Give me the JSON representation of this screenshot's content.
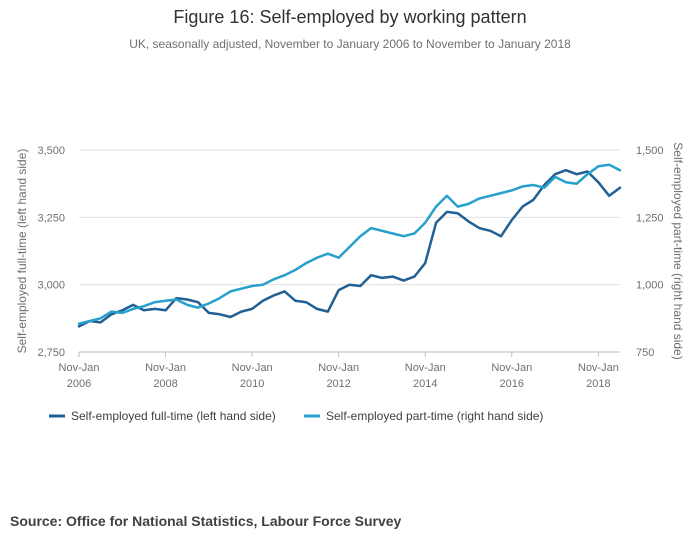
{
  "title": "Figure 16: Self-employed by working pattern",
  "subtitle": "UK, seasonally adjusted, November to January 2006 to November to January 2018",
  "source": "Source: Office for National Statistics, Labour Force Survey",
  "colors": {
    "full_time": "#206095",
    "part_time": "#27a0cc",
    "grid": "#e0e0e0",
    "axis": "#bebebe",
    "text": "#707070"
  },
  "chart_data": {
    "type": "line",
    "title": "Figure 16: Self-employed by working pattern",
    "xlabel": "",
    "ylabel": "Self-employed full-time (left hand side)",
    "y2label": "Self-employed part-time (right hand side)",
    "ylim": [
      2750,
      3500
    ],
    "y2lim": [
      750,
      1500
    ],
    "yticks": [
      "2,750",
      "3,000",
      "3,250",
      "3,500"
    ],
    "y2ticks": [
      "750",
      "1,000",
      "1,250",
      "1,500"
    ],
    "xticks": [
      {
        "label1": "Nov-Jan",
        "label2": "2006",
        "year": 2006
      },
      {
        "label1": "Nov-Jan",
        "label2": "2008",
        "year": 2008
      },
      {
        "label1": "Nov-Jan",
        "label2": "2010",
        "year": 2010
      },
      {
        "label1": "Nov-Jan",
        "label2": "2012",
        "year": 2012
      },
      {
        "label1": "Nov-Jan",
        "label2": "2014",
        "year": 2014
      },
      {
        "label1": "Nov-Jan",
        "label2": "2016",
        "year": 2016
      },
      {
        "label1": "Nov-Jan",
        "label2": "2018",
        "year": 2018
      }
    ],
    "grid": true,
    "legend_position": "bottom-left",
    "series": [
      {
        "name": "Self-employed full-time (left hand side)",
        "axis": "left",
        "color": "#206095",
        "x": [
          2006.0,
          2006.25,
          2006.5,
          2006.75,
          2007.0,
          2007.25,
          2007.5,
          2007.75,
          2008.0,
          2008.25,
          2008.5,
          2008.75,
          2009.0,
          2009.25,
          2009.5,
          2009.75,
          2010.0,
          2010.25,
          2010.5,
          2010.75,
          2011.0,
          2011.25,
          2011.5,
          2011.75,
          2012.0,
          2012.25,
          2012.5,
          2012.75,
          2013.0,
          2013.25,
          2013.5,
          2013.75,
          2014.0,
          2014.25,
          2014.5,
          2014.75,
          2015.0,
          2015.25,
          2015.5,
          2015.75,
          2016.0,
          2016.25,
          2016.5,
          2016.75,
          2017.0,
          2017.25,
          2017.5,
          2017.75,
          2018.0,
          2018.25,
          2018.5
        ],
        "values": [
          2845,
          2865,
          2860,
          2890,
          2905,
          2925,
          2905,
          2910,
          2905,
          2950,
          2945,
          2935,
          2895,
          2890,
          2880,
          2900,
          2910,
          2940,
          2960,
          2975,
          2940,
          2935,
          2910,
          2900,
          2980,
          3000,
          2995,
          3035,
          3025,
          3030,
          3015,
          3030,
          3080,
          3230,
          3270,
          3265,
          3235,
          3210,
          3200,
          3180,
          3240,
          3290,
          3315,
          3370,
          3410,
          3425,
          3410,
          3420,
          3380,
          3330,
          3360
        ]
      },
      {
        "name": "Self-employed part-time (right hand side)",
        "axis": "right",
        "color": "#27a0cc",
        "x": [
          2006.0,
          2006.25,
          2006.5,
          2006.75,
          2007.0,
          2007.25,
          2007.5,
          2007.75,
          2008.0,
          2008.25,
          2008.5,
          2008.75,
          2009.0,
          2009.25,
          2009.5,
          2009.75,
          2010.0,
          2010.25,
          2010.5,
          2010.75,
          2011.0,
          2011.25,
          2011.5,
          2011.75,
          2012.0,
          2012.25,
          2012.5,
          2012.75,
          2013.0,
          2013.25,
          2013.5,
          2013.75,
          2014.0,
          2014.25,
          2014.5,
          2014.75,
          2015.0,
          2015.25,
          2015.5,
          2015.75,
          2016.0,
          2016.25,
          2016.5,
          2016.75,
          2017.0,
          2017.25,
          2017.5,
          2017.75,
          2018.0,
          2018.25,
          2018.5
        ],
        "values": [
          855,
          865,
          875,
          900,
          895,
          910,
          920,
          935,
          940,
          945,
          925,
          915,
          930,
          950,
          975,
          985,
          995,
          1000,
          1020,
          1035,
          1055,
          1080,
          1100,
          1115,
          1100,
          1140,
          1180,
          1210,
          1200,
          1190,
          1180,
          1190,
          1230,
          1290,
          1330,
          1290,
          1300,
          1320,
          1330,
          1340,
          1350,
          1365,
          1370,
          1360,
          1400,
          1380,
          1375,
          1410,
          1440,
          1445,
          1425
        ]
      }
    ]
  }
}
